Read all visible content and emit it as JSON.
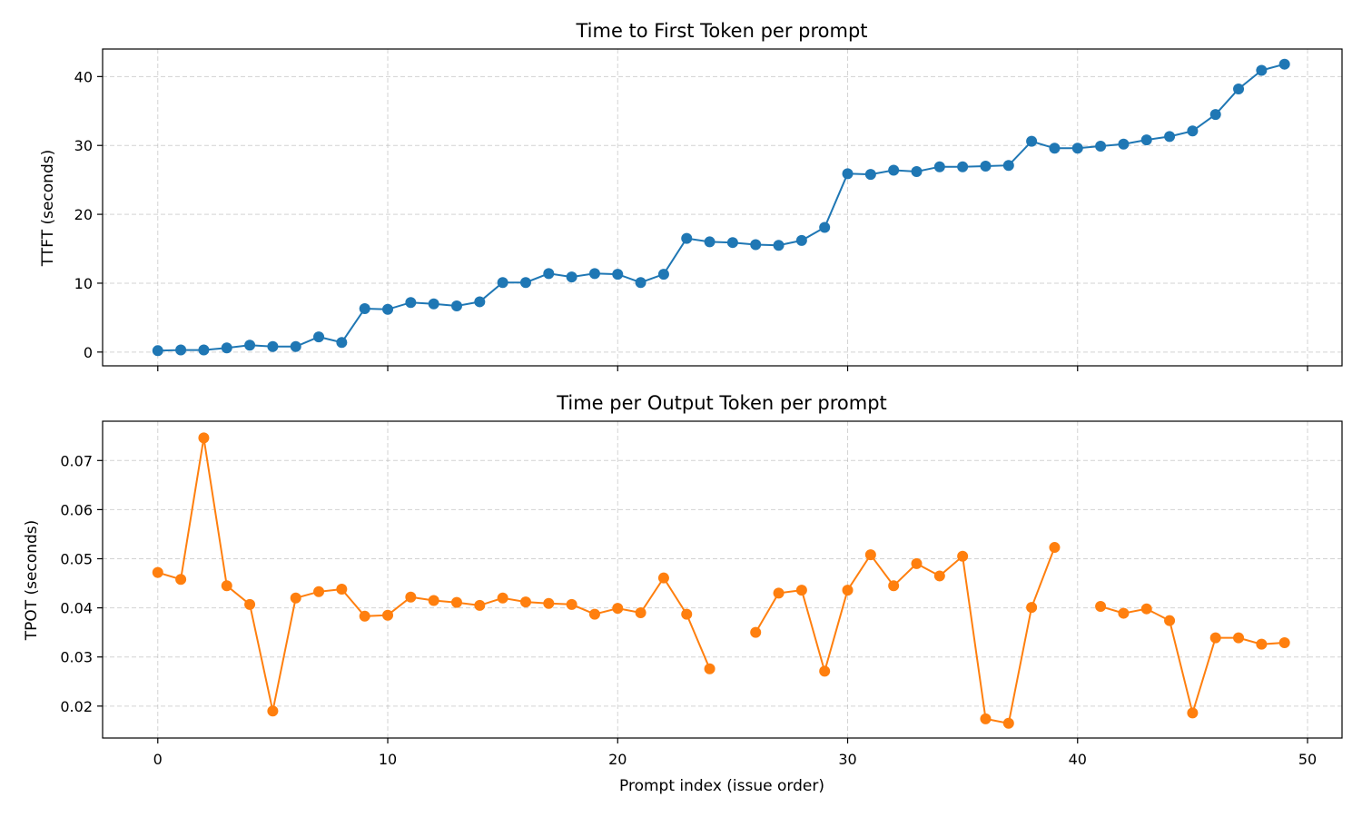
{
  "chart_data": [
    {
      "type": "line",
      "title": "Time to First Token per prompt",
      "xlabel": "",
      "ylabel": "TTFT (seconds)",
      "xlim": [
        -2.4,
        51.5
      ],
      "ylim": [
        -2.0,
        44.0
      ],
      "xticks": [
        0,
        10,
        20,
        30,
        40,
        50
      ],
      "yticks": [
        0,
        10,
        20,
        30,
        40
      ],
      "grid": true,
      "color": "#1f77b4",
      "x": [
        0,
        1,
        2,
        3,
        4,
        5,
        6,
        7,
        8,
        9,
        10,
        11,
        12,
        13,
        14,
        15,
        16,
        17,
        18,
        19,
        20,
        21,
        22,
        23,
        24,
        25,
        26,
        27,
        28,
        29,
        30,
        31,
        32,
        33,
        34,
        35,
        36,
        37,
        38,
        39,
        40,
        41,
        42,
        43,
        44,
        45,
        46,
        47,
        48,
        49
      ],
      "values": [
        0.2,
        0.3,
        0.3,
        0.6,
        1.0,
        0.8,
        0.8,
        2.2,
        1.4,
        6.3,
        6.2,
        7.2,
        7.0,
        6.7,
        7.3,
        10.1,
        10.1,
        11.4,
        10.9,
        11.4,
        11.3,
        10.1,
        11.3,
        16.5,
        16.0,
        15.9,
        15.6,
        15.5,
        16.2,
        18.1,
        25.9,
        25.8,
        26.4,
        26.2,
        26.9,
        26.9,
        27.0,
        27.1,
        30.6,
        29.6,
        29.6,
        29.9,
        30.2,
        30.8,
        31.3,
        32.1,
        34.5,
        38.2,
        40.9,
        41.8
      ]
    },
    {
      "type": "line",
      "title": "Time per Output Token per prompt",
      "xlabel": "Prompt index (issue order)",
      "ylabel": "TPOT (seconds)",
      "xlim": [
        -2.4,
        51.5
      ],
      "ylim": [
        0.0135,
        0.078
      ],
      "xticks": [
        0,
        10,
        20,
        30,
        40,
        50
      ],
      "yticks": [
        0.02,
        0.03,
        0.04,
        0.05,
        0.06,
        0.07
      ],
      "ytick_labels": [
        "0.02",
        "0.03",
        "0.04",
        "0.05",
        "0.06",
        "0.07"
      ],
      "grid": true,
      "color": "#ff7f0e",
      "x": [
        0,
        1,
        2,
        3,
        4,
        5,
        6,
        7,
        8,
        9,
        10,
        11,
        12,
        13,
        14,
        15,
        16,
        17,
        18,
        19,
        20,
        21,
        22,
        23,
        24,
        25,
        26,
        27,
        28,
        29,
        30,
        31,
        32,
        33,
        34,
        35,
        36,
        37,
        38,
        39,
        40,
        41,
        42,
        43,
        44,
        45,
        46,
        47,
        48,
        49
      ],
      "values": [
        0.0472,
        0.0458,
        0.0746,
        0.0445,
        0.0407,
        0.019,
        0.042,
        0.0433,
        0.0438,
        0.0383,
        0.0385,
        0.0422,
        0.0415,
        0.0411,
        0.0405,
        0.042,
        0.0412,
        0.0409,
        0.0407,
        0.0387,
        0.0399,
        0.039,
        0.0461,
        0.0387,
        0.0276,
        null,
        0.035,
        0.043,
        0.0436,
        0.0271,
        0.0436,
        0.0508,
        0.0445,
        0.049,
        0.0465,
        0.0505,
        0.0174,
        0.0165,
        0.0401,
        0.0523,
        null,
        0.0403,
        0.0389,
        0.0398,
        0.0374,
        0.0186,
        0.0339,
        0.0339,
        0.0326,
        0.0329
      ]
    }
  ]
}
